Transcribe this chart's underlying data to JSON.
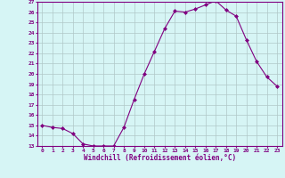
{
  "x": [
    0,
    1,
    2,
    3,
    4,
    5,
    6,
    7,
    8,
    9,
    10,
    11,
    12,
    13,
    14,
    15,
    16,
    17,
    18,
    19,
    20,
    21,
    22,
    23
  ],
  "y": [
    15.0,
    14.8,
    14.7,
    14.2,
    13.2,
    13.0,
    13.0,
    13.0,
    14.8,
    17.5,
    20.0,
    22.2,
    24.4,
    26.1,
    26.0,
    26.3,
    26.7,
    27.1,
    26.2,
    25.6,
    23.3,
    21.2,
    19.7,
    18.8
  ],
  "ylim": [
    13,
    27
  ],
  "yticks": [
    13,
    14,
    15,
    16,
    17,
    18,
    19,
    20,
    21,
    22,
    23,
    24,
    25,
    26,
    27
  ],
  "xticks": [
    0,
    1,
    2,
    3,
    4,
    5,
    6,
    7,
    8,
    9,
    10,
    11,
    12,
    13,
    14,
    15,
    16,
    17,
    18,
    19,
    20,
    21,
    22,
    23
  ],
  "xlabel": "Windchill (Refroidissement éolien,°C)",
  "line_color": "#800080",
  "marker": "D",
  "marker_size": 2,
  "bg_color": "#d6f5f5",
  "grid_color": "#b0c8c8",
  "axis_color": "#800080",
  "tick_color": "#800080",
  "font_family": "monospace",
  "tick_fontsize": 4.5,
  "xlabel_fontsize": 5.5
}
